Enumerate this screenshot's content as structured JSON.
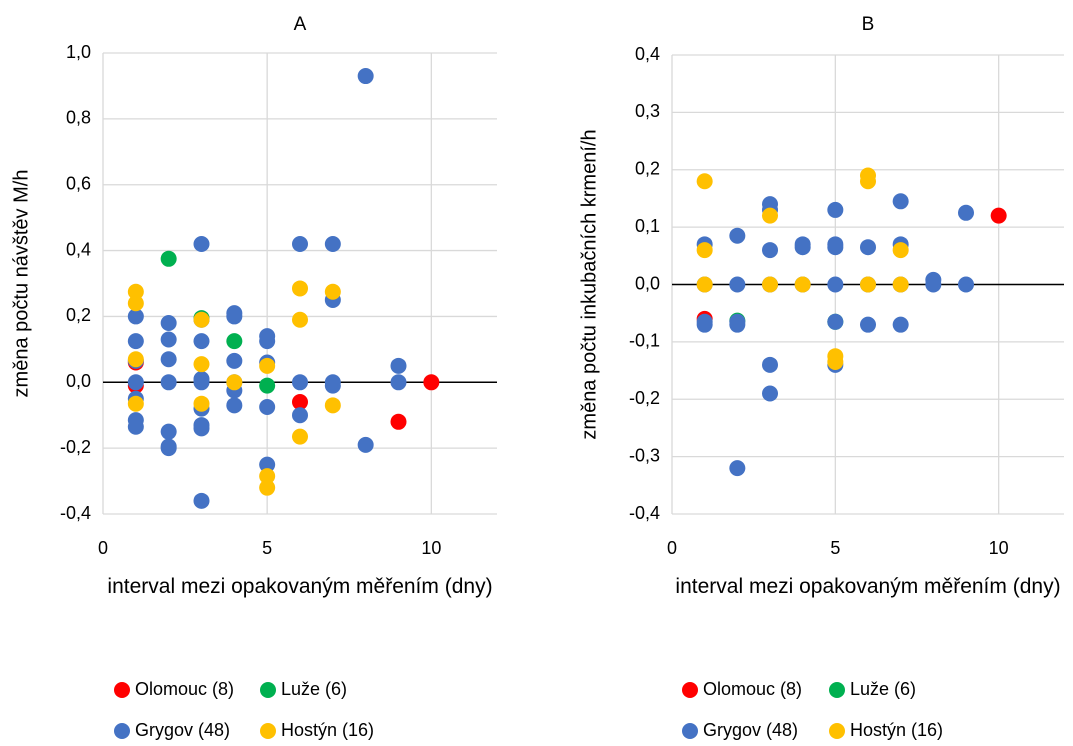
{
  "chart_data": [
    {
      "type": "scatter",
      "title": "A",
      "x_label": "interval mezi opakovaným měřením (dny)",
      "y_label": "změna počtu návštěv M/h",
      "xlim": [
        0,
        12
      ],
      "ylim": [
        -0.4,
        1.0
      ],
      "xticks": [
        0,
        5,
        10
      ],
      "yticks": [
        {
          "value": -0.4,
          "label": "-0,4"
        },
        {
          "value": -0.2,
          "label": "-0,2"
        },
        {
          "value": 0,
          "label": "0,0"
        },
        {
          "value": 0.2,
          "label": "0,2"
        },
        {
          "value": 0.4,
          "label": "0,4"
        },
        {
          "value": 0.6,
          "label": "0,6"
        },
        {
          "value": 0.8,
          "label": "0,8"
        },
        {
          "value": 1.0,
          "label": "1,0"
        }
      ],
      "grid": true,
      "series": [
        {
          "name": "Olomouc (8)",
          "color": "#ff0000",
          "x": [
            1,
            1,
            6,
            9,
            10
          ],
          "values": [
            0.06,
            -0.01,
            -0.06,
            -0.12,
            0
          ]
        },
        {
          "name": "Luže (6)",
          "color": "#00b050",
          "x": [
            2,
            3,
            4,
            5
          ],
          "values": [
            0.375,
            0.195,
            0.125,
            -0.01
          ]
        },
        {
          "name": "Grygov (48)",
          "color": "#4472c4",
          "x": [
            1,
            1,
            1,
            1,
            1,
            1,
            1,
            2,
            2,
            2,
            2,
            2,
            2,
            2,
            3,
            3,
            3,
            3,
            3,
            3,
            3,
            3,
            3,
            4,
            4,
            4,
            4,
            4,
            4,
            5,
            5,
            5,
            5,
            5,
            6,
            6,
            6,
            7,
            7,
            7,
            7,
            8,
            8,
            9,
            9
          ],
          "values": [
            0.2,
            0.125,
            0.065,
            0,
            -0.05,
            -0.115,
            -0.135,
            0.18,
            0.13,
            0.07,
            0,
            -0.15,
            -0.195,
            -0.2,
            0.42,
            0.19,
            0.125,
            0.01,
            0,
            -0.08,
            -0.13,
            -0.14,
            -0.36,
            0.21,
            0.2,
            0.065,
            0,
            -0.025,
            -0.07,
            0.14,
            0.125,
            0.06,
            -0.075,
            -0.25,
            0.42,
            0,
            -0.1,
            0.42,
            0.25,
            0,
            -0.01,
            0.93,
            -0.19,
            0.05,
            0
          ]
        },
        {
          "name": "Hostýn (16)",
          "color": "#ffc000",
          "x": [
            1,
            1,
            1,
            1,
            3,
            3,
            3,
            4,
            5,
            5,
            5,
            6,
            6,
            6,
            7,
            7
          ],
          "values": [
            0.275,
            0.24,
            0.07,
            -0.065,
            0.19,
            0.055,
            -0.065,
            0,
            0.05,
            -0.285,
            -0.32,
            0.285,
            0.19,
            -0.165,
            0.275,
            -0.07
          ]
        }
      ]
    },
    {
      "type": "scatter",
      "title": "B",
      "x_label": "interval mezi opakovaným měřením (dny)",
      "y_label": "změna počtu inkubačních krmení/h",
      "xlim": [
        0,
        12
      ],
      "ylim": [
        -0.4,
        0.4
      ],
      "xticks": [
        0,
        5,
        10
      ],
      "yticks": [
        {
          "value": -0.4,
          "label": "-0,4"
        },
        {
          "value": -0.3,
          "label": "-0,3"
        },
        {
          "value": -0.2,
          "label": "-0,2"
        },
        {
          "value": -0.1,
          "label": "-0,1"
        },
        {
          "value": 0,
          "label": "0,0"
        },
        {
          "value": 0.1,
          "label": "0,1"
        },
        {
          "value": 0.2,
          "label": "0,2"
        },
        {
          "value": 0.3,
          "label": "0,3"
        },
        {
          "value": 0.4,
          "label": "0,4"
        }
      ],
      "grid": true,
      "series": [
        {
          "name": "Olomouc (8)",
          "color": "#ff0000",
          "x": [
            1,
            10
          ],
          "values": [
            -0.06,
            0.12
          ]
        },
        {
          "name": "Luže (6)",
          "color": "#00b050",
          "x": [
            2,
            5
          ],
          "values": [
            -0.063,
            -0.065
          ]
        },
        {
          "name": "Grygov (48)",
          "color": "#4472c4",
          "x": [
            1,
            1,
            1,
            1,
            2,
            2,
            2,
            2,
            2,
            3,
            3,
            3,
            3,
            3,
            3,
            4,
            4,
            4,
            5,
            5,
            5,
            5,
            5,
            5,
            6,
            6,
            6,
            7,
            7,
            7,
            7,
            8,
            8,
            9,
            9
          ],
          "values": [
            0.07,
            0,
            -0.065,
            -0.07,
            0.085,
            0,
            -0.065,
            -0.07,
            -0.32,
            0.14,
            0.13,
            0.06,
            0,
            -0.14,
            -0.19,
            0.07,
            0.065,
            0,
            0.13,
            0.07,
            0.065,
            0,
            -0.065,
            -0.14,
            0.065,
            0,
            -0.07,
            0.145,
            0.07,
            0,
            -0.07,
            0.008,
            0,
            0.125,
            0
          ]
        },
        {
          "name": "Hostýn (16)",
          "color": "#ffc000",
          "x": [
            1,
            1,
            1,
            3,
            3,
            4,
            5,
            5,
            6,
            6,
            6,
            7,
            7
          ],
          "values": [
            0.18,
            0.06,
            0,
            0.12,
            0,
            0,
            -0.125,
            -0.135,
            0.19,
            0.18,
            0,
            0.06,
            0
          ]
        }
      ]
    }
  ]
}
